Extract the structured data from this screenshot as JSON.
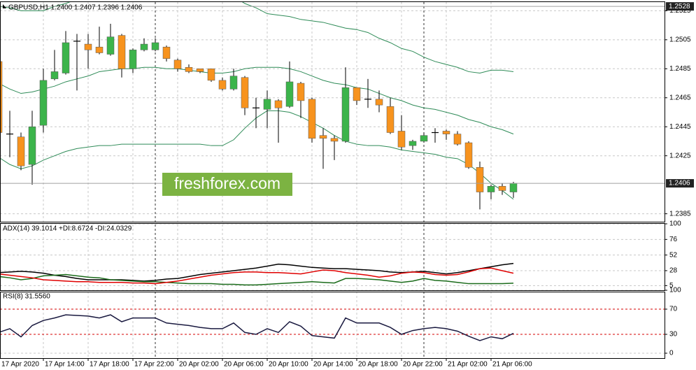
{
  "watermark": "freshforex.com",
  "chart_data": [
    {
      "type": "candlestick",
      "title": "GBPUSD,H1  1.2400 1.2407 1.2396 1.2406",
      "categories": [
        "17 Apr 2020",
        null,
        null,
        null,
        "17 Apr 14:00",
        null,
        null,
        null,
        "17 Apr 18:00",
        null,
        null,
        null,
        "17 Apr 22:00",
        null,
        null,
        null,
        "20 Apr 02:00",
        null,
        null,
        null,
        "20 Apr 06:00",
        null,
        null,
        null,
        "20 Apr 10:00",
        null,
        null,
        null,
        "20 Apr 14:00",
        null,
        null,
        null,
        "20 Apr 18:00",
        null,
        null,
        null,
        "20 Apr 22:00",
        null,
        null,
        null,
        "21 Apr 02:00",
        null,
        null,
        null,
        "21 Apr 06:00",
        null,
        null
      ],
      "open": [
        1.249,
        1.244,
        1.2438,
        1.2419,
        1.2446,
        1.2478,
        1.2482,
        1.2504,
        1.2502,
        1.25,
        1.2495,
        1.2508,
        1.2485,
        1.2498,
        1.2498,
        1.25,
        1.2491,
        1.2486,
        1.2485,
        1.2485,
        1.2477,
        1.2471,
        1.2479,
        1.2458,
        1.2457,
        1.2463,
        1.2459,
        1.2475,
        1.2464,
        1.2439,
        1.2437,
        1.2435,
        1.2472,
        1.2464,
        1.2464,
        1.2459,
        1.2442,
        1.2432,
        1.2435,
        1.2441,
        1.2442,
        1.244,
        1.2434,
        1.2417,
        1.24,
        1.2404,
        1.24
      ],
      "high": [
        1.2491,
        1.2456,
        1.2441,
        1.2456,
        1.2485,
        1.2498,
        1.2511,
        1.2509,
        1.2509,
        1.2514,
        1.2516,
        1.2509,
        1.2499,
        1.2506,
        1.2506,
        1.2501,
        1.2492,
        1.2488,
        1.2485,
        1.2485,
        1.2479,
        1.2485,
        1.248,
        1.2465,
        1.247,
        1.2464,
        1.249,
        1.2476,
        1.2465,
        1.2444,
        1.2439,
        1.2486,
        1.2472,
        1.2478,
        1.247,
        1.2465,
        1.2453,
        1.2436,
        1.2441,
        1.2444,
        1.2443,
        1.2442,
        1.2435,
        1.2421,
        1.2405,
        1.2406,
        1.2407
      ],
      "low": [
        1.244,
        1.2424,
        1.2415,
        1.2405,
        1.2441,
        1.2477,
        1.2481,
        1.247,
        1.2485,
        1.2495,
        1.2494,
        1.2479,
        1.2482,
        1.2497,
        1.2497,
        1.249,
        1.2483,
        1.2482,
        1.2482,
        1.2476,
        1.247,
        1.247,
        1.2453,
        1.2444,
        1.2444,
        1.2434,
        1.2458,
        1.2451,
        1.2434,
        1.2416,
        1.2422,
        1.2434,
        1.246,
        1.2458,
        1.2455,
        1.244,
        1.2429,
        1.2429,
        1.2434,
        1.2434,
        1.2436,
        1.2432,
        1.2416,
        1.2388,
        1.2395,
        1.2398,
        1.2396
      ],
      "close": [
        1.2441,
        1.244,
        1.2418,
        1.2445,
        1.2477,
        1.2483,
        1.2503,
        1.2504,
        1.2498,
        1.2496,
        1.2507,
        1.2485,
        1.2498,
        1.2502,
        1.2503,
        1.2492,
        1.2485,
        1.2483,
        1.2483,
        1.2477,
        1.2471,
        1.248,
        1.2458,
        1.2458,
        1.2464,
        1.2458,
        1.2476,
        1.2463,
        1.2437,
        1.2437,
        1.2435,
        1.2472,
        1.2463,
        1.2464,
        1.246,
        1.2441,
        1.2431,
        1.2435,
        1.2439,
        1.2441,
        1.244,
        1.2433,
        1.2417,
        1.24,
        1.2404,
        1.2401,
        1.2406
      ],
      "up_color": "#3cb44b",
      "down_color": "#f7931e",
      "overlays": [
        {
          "color": "#2e8b57",
          "values": [
            1.2528,
            1.2527,
            1.2525,
            1.2525,
            1.2525,
            1.2528,
            1.253,
            1.2533,
            1.2535,
            1.2535,
            1.2535,
            1.2535,
            1.2535,
            1.2535,
            1.2535,
            1.2535,
            1.2535,
            1.2535,
            1.2535,
            1.2535,
            1.2535,
            1.2535,
            1.253,
            1.2527,
            1.2523,
            1.2522,
            1.2521,
            1.2519,
            1.2518,
            1.2517,
            1.2515,
            1.2513,
            1.2512,
            1.251,
            1.2506,
            1.2503,
            1.2499,
            1.2497,
            1.2493,
            1.249,
            1.2488,
            1.2486,
            1.2483,
            1.2482,
            1.2484,
            1.2484,
            1.2483
          ]
        },
        {
          "color": "#2e8b57",
          "values": [
            1.2475,
            1.2471,
            1.2468,
            1.2469,
            1.2471,
            1.2473,
            1.2476,
            1.2478,
            1.248,
            1.2483,
            1.2484,
            1.2485,
            1.2485,
            1.2486,
            1.2486,
            1.2485,
            1.2485,
            1.2484,
            1.2483,
            1.2482,
            1.2482,
            1.2483,
            1.2485,
            1.2486,
            1.2486,
            1.2486,
            1.2485,
            1.2483,
            1.248,
            1.2477,
            1.2475,
            1.2474,
            1.2472,
            1.2471,
            1.2468,
            1.2465,
            1.2463,
            1.246,
            1.2458,
            1.2457,
            1.2455,
            1.2453,
            1.245,
            1.2448,
            1.2445,
            1.2443,
            1.244
          ]
        },
        {
          "color": "#2e8b57",
          "values": [
            1.2424,
            1.2419,
            1.2416,
            1.2418,
            1.2422,
            1.2425,
            1.2428,
            1.243,
            1.2431,
            1.2432,
            1.2432,
            1.2433,
            1.2433,
            1.2433,
            1.2433,
            1.2433,
            1.2433,
            1.2433,
            1.2433,
            1.2432,
            1.2432,
            1.2436,
            1.2444,
            1.2451,
            1.2456,
            1.2456,
            1.2455,
            1.2452,
            1.2448,
            1.2444,
            1.2439,
            1.2435,
            1.2433,
            1.2432,
            1.2432,
            1.2431,
            1.2429,
            1.2428,
            1.2427,
            1.2426,
            1.2424,
            1.2423,
            1.2419,
            1.2413,
            1.2406,
            1.2401,
            1.2395
          ]
        }
      ],
      "ylim": [
        1.238,
        1.253
      ],
      "yticks": [
        1.2525,
        1.2505,
        1.2485,
        1.2465,
        1.2445,
        1.2425,
        1.2385
      ],
      "high_marker": 1.2528,
      "current_price": 1.2406,
      "grid": true
    },
    {
      "type": "line",
      "title": "ADX(14) 39.1014 +DI:8.6724 -DI:24.0329",
      "ylim": [
        0,
        100
      ],
      "yticks": [
        100,
        76,
        52,
        28,
        5
      ],
      "series": [
        {
          "color": "#000000",
          "values": [
            25,
            26,
            27,
            26,
            24,
            21,
            19,
            16,
            14,
            14,
            14,
            14,
            13,
            12,
            13,
            15,
            16,
            19,
            22,
            24,
            26,
            28,
            30,
            32,
            35,
            38,
            37,
            35,
            33,
            32,
            31,
            31,
            30,
            29,
            28,
            26,
            25,
            26,
            27,
            25,
            23,
            25,
            28,
            31,
            34,
            37,
            39.1014
          ]
        },
        {
          "color": "#1a6b1a",
          "values": [
            19,
            17,
            14,
            16,
            20,
            21,
            22,
            20,
            18,
            17,
            14,
            13,
            12,
            11,
            11,
            10,
            9,
            8,
            8,
            8,
            7,
            7,
            6,
            6,
            7,
            8,
            9,
            10,
            11,
            10,
            9,
            16,
            16,
            15,
            14,
            12,
            10,
            12,
            16,
            13,
            12,
            10,
            8,
            8,
            8,
            8,
            8.6724
          ]
        },
        {
          "color": "#e00000",
          "values": [
            23,
            21,
            19,
            17,
            14,
            13,
            12,
            11,
            11,
            10,
            10,
            10,
            9,
            9,
            8,
            10,
            12,
            15,
            18,
            21,
            23,
            25,
            26,
            26,
            25,
            25,
            24,
            23,
            26,
            29,
            28,
            25,
            23,
            21,
            18,
            20,
            24,
            26,
            25,
            22,
            21,
            22,
            26,
            31,
            32,
            28,
            24.0329
          ]
        }
      ],
      "grid": true
    },
    {
      "type": "line",
      "title": "RSI(8) 31.5560",
      "ylim": [
        0,
        100
      ],
      "yticks": [
        100,
        70,
        30,
        0
      ],
      "levels": [
        70,
        30
      ],
      "level_color": "#d40000",
      "series": [
        {
          "color": "#1a1a40",
          "values": [
            33,
            39,
            26,
            44,
            52,
            56,
            61,
            60,
            59,
            56,
            61,
            50,
            56,
            56,
            56,
            48,
            46,
            44,
            41,
            39,
            39,
            48,
            33,
            30,
            39,
            33,
            50,
            43,
            28,
            26,
            24,
            56,
            48,
            48,
            48,
            41,
            30,
            36,
            39,
            41,
            39,
            35,
            27,
            20,
            26,
            23,
            31.556
          ]
        }
      ],
      "grid": true
    }
  ]
}
